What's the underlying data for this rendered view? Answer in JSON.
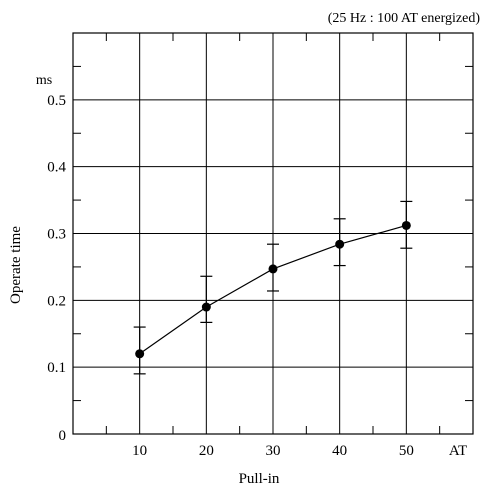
{
  "chart_data": {
    "type": "scatter",
    "annotation": "(25 Hz : 100 AT energized)",
    "ylabel": "Operate time",
    "y_unit": "ms",
    "xlabel": "Pull-in",
    "x_unit": "AT",
    "xlim": [
      0,
      60
    ],
    "ylim": [
      0,
      0.6
    ],
    "x_ticks": [
      10,
      20,
      30,
      40,
      50
    ],
    "y_ticks": [
      0.1,
      0.2,
      0.3,
      0.4,
      0.5
    ],
    "y_tick_labels": [
      "0.1",
      "0.2",
      "0.3",
      "0.4",
      "0.5"
    ],
    "origin_label": "0",
    "grid": true,
    "series": [
      {
        "x": [
          10,
          20,
          30,
          40,
          50
        ],
        "y": [
          0.12,
          0.19,
          0.247,
          0.284,
          0.312
        ],
        "y_max": [
          0.16,
          0.236,
          0.284,
          0.322,
          0.348
        ],
        "y_min": [
          0.09,
          0.167,
          0.214,
          0.252,
          0.278
        ]
      }
    ]
  }
}
